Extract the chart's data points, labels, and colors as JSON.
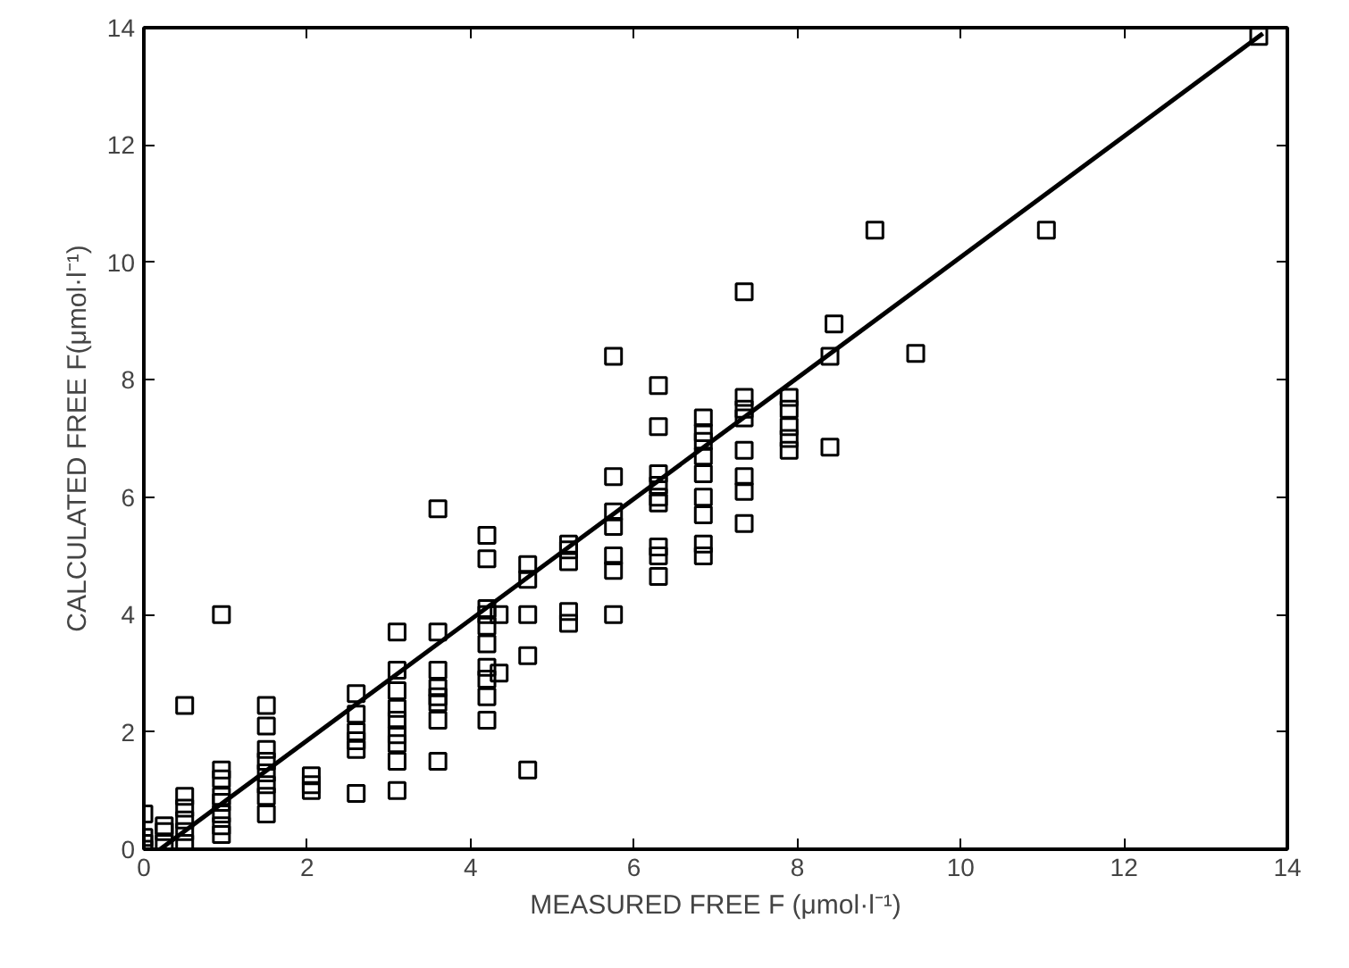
{
  "chart_data": {
    "type": "scatter",
    "xlabel": "MEASURED FREE F (μmol·l⁻¹)",
    "ylabel": "CALCULATED FREE F(μmol·l⁻¹)",
    "xlim": [
      0,
      14
    ],
    "ylim": [
      0,
      14
    ],
    "xticks": [
      0,
      2,
      4,
      6,
      8,
      10,
      12,
      14
    ],
    "yticks": [
      0,
      2,
      4,
      6,
      8,
      10,
      12,
      14
    ],
    "grid": false,
    "marker": "square",
    "series": [
      {
        "color": "#000000",
        "x": [
          0,
          0,
          0,
          0,
          0.25,
          0.25,
          0.25,
          0.5,
          0.5,
          0.5,
          0.5,
          0.5,
          0.5,
          0.95,
          0.95,
          0.95,
          0.95,
          0.95,
          0.95,
          0.95,
          0.95,
          1.5,
          1.5,
          1.5,
          1.5,
          1.5,
          1.5,
          1.5,
          1.5,
          2.05,
          2.05,
          2.05,
          2.6,
          2.6,
          2.6,
          2.6,
          2.6,
          2.6,
          3.1,
          3.1,
          3.1,
          3.1,
          3.1,
          3.1,
          3.1,
          3.1,
          3.1,
          3.6,
          3.6,
          3.6,
          3.6,
          3.6,
          3.6,
          3.6,
          3.6,
          4.2,
          4.2,
          4.2,
          4.2,
          4.2,
          4.2,
          4.2,
          4.2,
          4.2,
          4.2,
          4.35,
          4.35,
          4.7,
          4.7,
          4.7,
          4.7,
          4.7,
          5.2,
          5.2,
          5.2,
          5.2,
          5.2,
          5.75,
          5.75,
          5.75,
          5.75,
          5.75,
          5.75,
          5.75,
          6.3,
          6.3,
          6.3,
          6.3,
          6.3,
          6.3,
          6.3,
          6.3,
          6.3,
          6.85,
          6.85,
          6.85,
          6.85,
          6.85,
          6.85,
          6.85,
          6.85,
          6.85,
          7.35,
          7.35,
          7.35,
          7.35,
          7.35,
          7.35,
          7.35,
          7.35,
          7.9,
          7.9,
          7.9,
          7.9,
          7.9,
          8.4,
          8.4,
          8.45,
          8.95,
          9.45,
          11.05,
          13.65
        ],
        "values": [
          0.6,
          0.2,
          0.1,
          0,
          0.4,
          0.3,
          0.1,
          2.45,
          0.9,
          0.7,
          0.5,
          0.3,
          0.1,
          4.0,
          1.35,
          1.2,
          0.9,
          0.8,
          0.6,
          0.4,
          0.25,
          2.45,
          2.1,
          1.7,
          1.5,
          1.3,
          1.1,
          0.9,
          0.6,
          1.25,
          1.1,
          1.0,
          2.65,
          2.3,
          2.0,
          1.85,
          1.7,
          0.95,
          3.7,
          3.05,
          2.7,
          2.4,
          2.2,
          1.95,
          1.8,
          1.5,
          1.0,
          5.8,
          3.7,
          3.05,
          2.75,
          2.6,
          2.5,
          2.2,
          1.5,
          5.35,
          4.95,
          4.1,
          4.0,
          3.8,
          3.5,
          3.1,
          2.9,
          2.6,
          2.2,
          4.0,
          3.0,
          4.85,
          4.6,
          4.0,
          3.3,
          1.35,
          5.2,
          5.1,
          4.9,
          4.05,
          3.85,
          8.4,
          6.35,
          5.75,
          5.5,
          5.0,
          4.75,
          4.0,
          7.9,
          7.2,
          6.4,
          6.2,
          6.0,
          5.9,
          5.15,
          5.0,
          4.65,
          7.35,
          7.1,
          6.95,
          6.7,
          6.4,
          6.0,
          5.7,
          5.2,
          5.0,
          9.5,
          7.7,
          7.5,
          7.35,
          6.8,
          6.35,
          6.1,
          5.55,
          7.7,
          7.5,
          7.2,
          7.0,
          6.8,
          8.4,
          6.85,
          8.95,
          10.55,
          8.45,
          10.55,
          13.85
        ]
      },
      {
        "type": "line",
        "color": "#000000",
        "marker": "none",
        "x": [
          0.2,
          13.7
        ],
        "values": [
          0,
          13.9
        ]
      }
    ]
  }
}
